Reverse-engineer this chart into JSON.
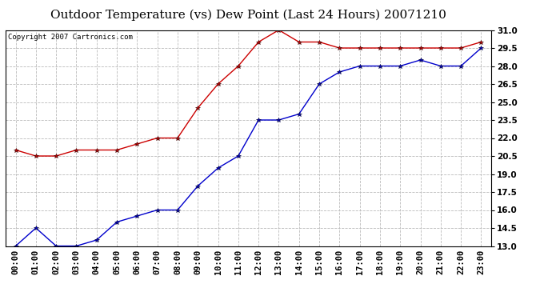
{
  "title": "Outdoor Temperature (vs) Dew Point (Last 24 Hours) 20071210",
  "copyright_text": "Copyright 2007 Cartronics.com",
  "x_labels": [
    "00:00",
    "01:00",
    "02:00",
    "03:00",
    "04:00",
    "05:00",
    "06:00",
    "07:00",
    "08:00",
    "09:00",
    "10:00",
    "11:00",
    "12:00",
    "13:00",
    "14:00",
    "15:00",
    "16:00",
    "17:00",
    "18:00",
    "19:00",
    "20:00",
    "21:00",
    "22:00",
    "23:00"
  ],
  "temp_data": [
    13.0,
    14.5,
    13.0,
    13.0,
    13.5,
    15.0,
    15.5,
    16.0,
    16.0,
    18.0,
    19.5,
    20.5,
    23.5,
    23.5,
    24.0,
    26.5,
    27.5,
    28.0,
    28.0,
    28.0,
    28.5,
    28.0,
    28.0,
    29.5
  ],
  "dewpoint_data": [
    21.0,
    20.5,
    20.5,
    21.0,
    21.0,
    21.0,
    21.5,
    22.0,
    22.0,
    24.5,
    26.5,
    28.0,
    30.0,
    31.0,
    30.0,
    30.0,
    29.5,
    29.5,
    29.5,
    29.5,
    29.5,
    29.5,
    29.5,
    30.0
  ],
  "temp_color": "#0000cc",
  "dewpoint_color": "#cc0000",
  "marker": "*",
  "ylim_min": 13.0,
  "ylim_max": 31.0,
  "ytick_interval": 1.5,
  "background_color": "#ffffff",
  "grid_color": "#bbbbbb",
  "title_fontsize": 11,
  "tick_fontsize": 7.5,
  "copyright_fontsize": 6.5
}
